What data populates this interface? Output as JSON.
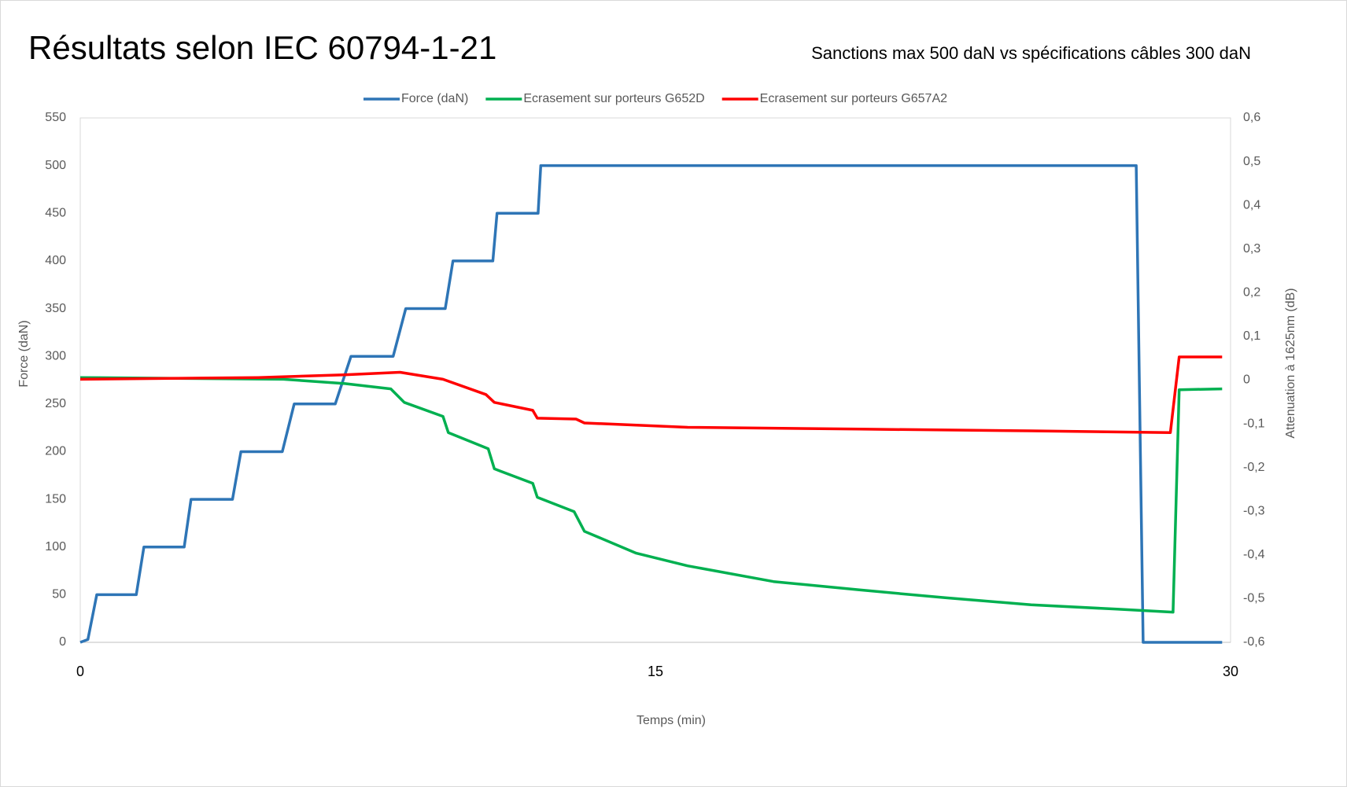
{
  "chart_data": {
    "type": "line",
    "title": "Résultats selon IEC 60794-1-21",
    "subtitle": "Sanctions max 500 daN vs spécifications câbles 300 daN",
    "xlabel": "Temps (min)",
    "ylabel": "Force (daN)",
    "y2label": "Attenuation à 1625nm (dB)",
    "xlim": [
      0,
      30
    ],
    "xticks": [
      0,
      15,
      30
    ],
    "ylim": [
      0,
      550
    ],
    "yticks": [
      0,
      50,
      100,
      150,
      200,
      250,
      300,
      350,
      400,
      450,
      500,
      550
    ],
    "y2lim": [
      -0.6,
      0.6
    ],
    "y2ticks": [
      {
        "value": -0.6,
        "label": "-0,6"
      },
      {
        "value": -0.5,
        "label": "-0,5"
      },
      {
        "value": -0.4,
        "label": "-0,4"
      },
      {
        "value": -0.3,
        "label": "-0,3"
      },
      {
        "value": -0.2,
        "label": "-0,2"
      },
      {
        "value": -0.1,
        "label": "-0,1"
      },
      0,
      {
        "value": 0.1,
        "label": "0,1"
      },
      {
        "value": 0.2,
        "label": "0,2"
      },
      {
        "value": 0.3,
        "label": "0,3"
      },
      {
        "value": 0.4,
        "label": "0,4"
      },
      {
        "value": 0.5,
        "label": "0,5"
      },
      {
        "value": 0.6,
        "label": "0,6"
      }
    ],
    "grid": false,
    "legend": "top",
    "series": [
      {
        "name": "Force (daN)",
        "color": "#2e75b6",
        "x": [
          0,
          0.2,
          0.43,
          1.46,
          1.66,
          2.71,
          2.89,
          3.97,
          4.19,
          5.27,
          5.58,
          6.65,
          7.06,
          8.16,
          8.49,
          9.52,
          9.72,
          10.76,
          10.87,
          11.94,
          12.01,
          27.54,
          27.72,
          29.78
        ],
        "values": [
          0,
          3,
          50,
          50,
          100,
          100,
          150,
          150,
          200,
          200,
          250,
          250,
          300,
          300,
          350,
          350,
          400,
          400,
          450,
          450,
          500,
          500,
          0,
          0
        ]
      },
      {
        "name": "Ecrasement sur porteurs G652D",
        "color": "#00b050",
        "axis": "y2",
        "x": [
          0,
          5.3,
          6.9,
          8.1,
          8.45,
          9.46,
          9.6,
          10.64,
          10.8,
          11.8,
          11.92,
          12.88,
          13.15,
          14.5,
          15.84,
          18.08,
          20.32,
          22.56,
          24.8,
          27.04,
          28.5,
          28.66,
          29.78
        ],
        "values": [
          0.006,
          0.002,
          -0.008,
          -0.02,
          -0.051,
          -0.083,
          -0.12,
          -0.157,
          -0.203,
          -0.236,
          -0.268,
          -0.301,
          -0.346,
          -0.396,
          -0.425,
          -0.461,
          -0.48,
          -0.498,
          -0.514,
          -0.524,
          -0.531,
          -0.022,
          -0.02
        ]
      },
      {
        "name": "Ecrasement sur porteurs G657A2",
        "color": "#ff0000",
        "axis": "y2",
        "x": [
          0,
          4.64,
          6.88,
          8.34,
          9.46,
          10.58,
          10.8,
          11.8,
          11.92,
          12.93,
          13.15,
          15.84,
          20.32,
          24.8,
          28.43,
          28.66,
          29.78
        ],
        "values": [
          0.002,
          0.006,
          0.012,
          0.018,
          0.002,
          -0.033,
          -0.051,
          -0.069,
          -0.087,
          -0.089,
          -0.098,
          -0.108,
          -0.112,
          -0.116,
          -0.12,
          0.053,
          0.053
        ]
      }
    ]
  }
}
